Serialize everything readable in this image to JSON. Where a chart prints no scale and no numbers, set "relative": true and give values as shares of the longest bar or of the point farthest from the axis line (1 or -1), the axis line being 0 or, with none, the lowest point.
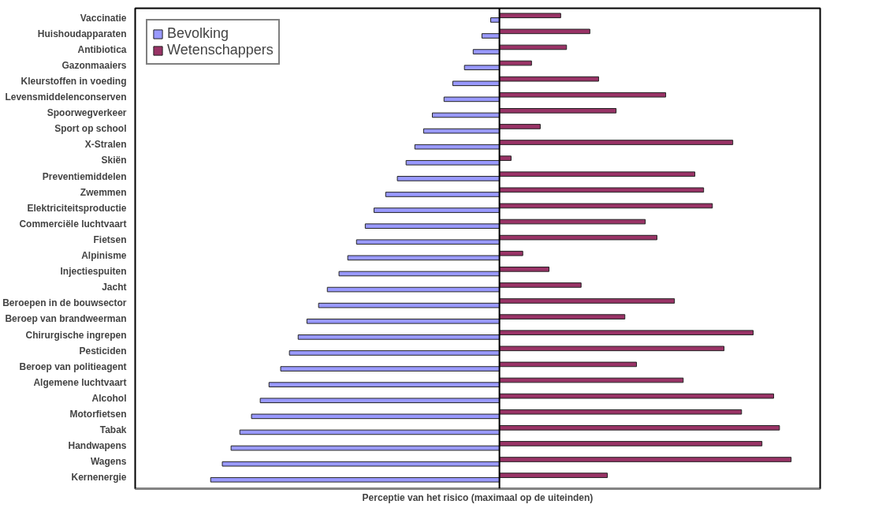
{
  "chart_data": {
    "type": "bar",
    "orientation": "horizontal",
    "relative": true,
    "xlabel": "Perceptie van het risico (maximaal op de uiteinden)",
    "categories": [
      "Vaccinatie",
      "Huishoudapparaten",
      "Antibiotica",
      "Gazonmaaiers",
      "Kleurstoffen in voeding",
      "Levensmiddelenconserven",
      "Spoorwegverkeer",
      "Sport op school",
      "X-Stralen",
      "Skiën",
      "Preventiemiddelen",
      "Zwemmen",
      "Elektriciteitsproductie",
      "Commerciële luchtvaart",
      "Fietsen",
      "Alpinisme",
      "Injectiespuiten",
      "Jacht",
      "Beroepen in de bouwsector",
      "Beroep van brandweerman",
      "Chirurgische ingrepen",
      "Pesticiden",
      "Beroep van politieagent",
      "Algemene luchtvaart",
      "Alcohol",
      "Motorfietsen",
      "Tabak",
      "Handwapens",
      "Wagens",
      "Kernenergie"
    ],
    "series": [
      {
        "name": "Bevolking",
        "color": "#9999ff",
        "values": [
          -0.03,
          -0.06,
          -0.09,
          -0.12,
          -0.16,
          -0.19,
          -0.23,
          -0.26,
          -0.29,
          -0.32,
          -0.35,
          -0.39,
          -0.43,
          -0.46,
          -0.49,
          -0.52,
          -0.55,
          -0.59,
          -0.62,
          -0.66,
          -0.69,
          -0.72,
          -0.75,
          -0.79,
          -0.82,
          -0.85,
          -0.89,
          -0.92,
          -0.95,
          -0.99
        ]
      },
      {
        "name": "Wetenschappers",
        "color": "#993366",
        "values": [
          0.21,
          0.31,
          0.23,
          0.11,
          0.34,
          0.57,
          0.4,
          0.14,
          0.8,
          0.04,
          0.67,
          0.7,
          0.73,
          0.5,
          0.54,
          0.08,
          0.17,
          0.28,
          0.6,
          0.43,
          0.87,
          0.77,
          0.47,
          0.63,
          0.94,
          0.83,
          0.96,
          0.9,
          1.0,
          0.37
        ]
      }
    ],
    "legend": "top left",
    "grid": false
  }
}
